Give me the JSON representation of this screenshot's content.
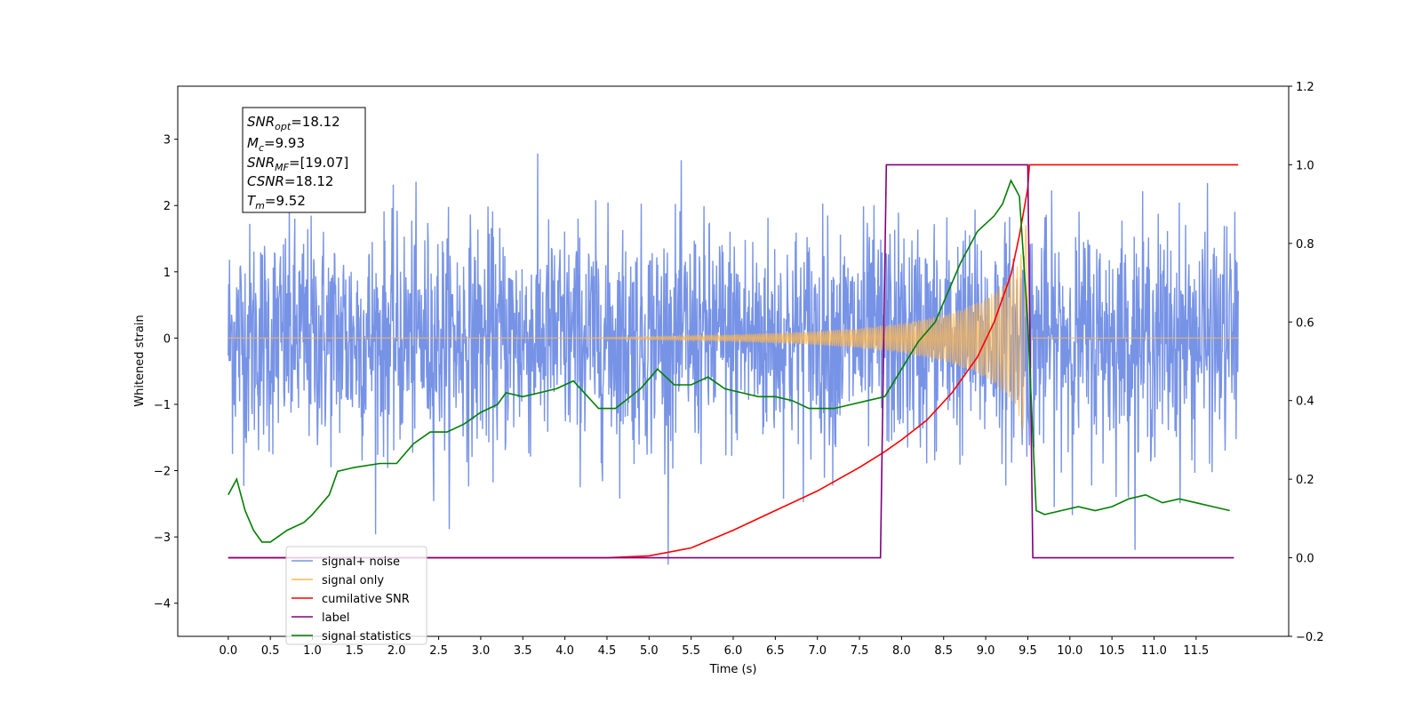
{
  "chart_data": {
    "type": "line",
    "xlabel": "Time (s)",
    "ylabel": "Whitened strain",
    "xlim": [
      -0.6,
      12.6
    ],
    "ylim": [
      -4.5,
      3.8
    ],
    "y2lim": [
      -0.2,
      1.2
    ],
    "x_ticks": [
      "0.0",
      "0.5",
      "1.0",
      "1.5",
      "2.0",
      "2.5",
      "3.0",
      "3.5",
      "4.0",
      "4.5",
      "5.0",
      "5.5",
      "6.0",
      "6.5",
      "7.0",
      "7.5",
      "8.0",
      "8.5",
      "9.0",
      "9.5",
      "10.0",
      "10.5",
      "11.0",
      "11.5"
    ],
    "y_ticks": [
      "3",
      "2",
      "1",
      "0",
      "−1",
      "−2",
      "−3",
      "−4"
    ],
    "y2_ticks": [
      "1.2",
      "1.0",
      "0.8",
      "0.6",
      "0.4",
      "0.2",
      "0.0",
      "−0.2"
    ],
    "grid": false,
    "legend_position": "lower-left",
    "annotation": {
      "snr_opt": "=18.12",
      "mc": "=9.93",
      "snr_mf": "=[19.07]",
      "csnr": "=18.12",
      "tm": "=9.52"
    },
    "series": [
      {
        "name": "signal+ noise",
        "axis": "left",
        "color": "#7793e6",
        "description_values": "noise band approx ±1.2 (peaks to ±3.5) from 0 to 12 s",
        "x_range": [
          0.0,
          12.0
        ]
      },
      {
        "name": "signal only",
        "axis": "left",
        "color": "#ffb84d",
        "chirp_end_time": 9.52,
        "envelope": {
          "x": [
            0.0,
            4.0,
            5.0,
            6.0,
            7.0,
            7.5,
            8.0,
            8.5,
            8.8,
            9.0,
            9.2,
            9.35,
            9.45,
            9.5,
            9.52,
            12.0
          ],
          "y": [
            0.0,
            0.0,
            0.02,
            0.05,
            0.1,
            0.15,
            0.22,
            0.35,
            0.48,
            0.6,
            0.8,
            1.0,
            1.4,
            2.0,
            0.0,
            0.0
          ]
        }
      },
      {
        "name": "cumilative SNR",
        "axis": "right",
        "color": "#ff0000",
        "x": [
          0.0,
          4.5,
          5.0,
          5.5,
          6.0,
          6.5,
          7.0,
          7.5,
          7.8,
          8.0,
          8.3,
          8.6,
          8.9,
          9.1,
          9.3,
          9.4,
          9.45,
          9.5,
          9.52,
          12.0
        ],
        "y": [
          0.0,
          0.0,
          0.005,
          0.025,
          0.07,
          0.12,
          0.17,
          0.23,
          0.27,
          0.3,
          0.35,
          0.42,
          0.51,
          0.6,
          0.72,
          0.82,
          0.88,
          0.94,
          1.0,
          1.0
        ]
      },
      {
        "name": "label",
        "axis": "right",
        "color": "#800080",
        "x": [
          0.0,
          7.75,
          7.82,
          9.5,
          9.56,
          11.95
        ],
        "y": [
          0.0,
          0.0,
          1.0,
          1.0,
          0.0,
          0.0
        ]
      },
      {
        "name": "signal statistics",
        "axis": "right",
        "color": "#008000",
        "x": [
          0.0,
          0.1,
          0.2,
          0.3,
          0.4,
          0.5,
          0.7,
          0.9,
          1.0,
          1.2,
          1.3,
          1.5,
          1.8,
          2.0,
          2.2,
          2.4,
          2.6,
          2.8,
          3.0,
          3.2,
          3.3,
          3.5,
          3.7,
          3.9,
          4.1,
          4.4,
          4.6,
          4.9,
          5.1,
          5.3,
          5.5,
          5.7,
          5.9,
          6.1,
          6.3,
          6.5,
          6.7,
          6.9,
          7.0,
          7.2,
          7.4,
          7.6,
          7.8,
          8.0,
          8.2,
          8.4,
          8.5,
          8.7,
          8.9,
          9.1,
          9.2,
          9.3,
          9.4,
          9.5,
          9.6,
          9.7,
          9.9,
          10.1,
          10.3,
          10.5,
          10.7,
          10.9,
          11.1,
          11.3,
          11.5,
          11.7,
          11.9
        ],
        "y": [
          0.16,
          0.2,
          0.12,
          0.07,
          0.04,
          0.04,
          0.07,
          0.09,
          0.11,
          0.16,
          0.22,
          0.23,
          0.24,
          0.24,
          0.29,
          0.32,
          0.32,
          0.34,
          0.37,
          0.39,
          0.42,
          0.41,
          0.42,
          0.43,
          0.45,
          0.38,
          0.38,
          0.43,
          0.48,
          0.44,
          0.44,
          0.46,
          0.43,
          0.42,
          0.41,
          0.41,
          0.4,
          0.38,
          0.38,
          0.38,
          0.39,
          0.4,
          0.41,
          0.48,
          0.55,
          0.6,
          0.65,
          0.75,
          0.83,
          0.87,
          0.9,
          0.96,
          0.92,
          0.6,
          0.12,
          0.11,
          0.12,
          0.13,
          0.12,
          0.13,
          0.15,
          0.16,
          0.14,
          0.15,
          0.14,
          0.13,
          0.12
        ]
      }
    ]
  }
}
